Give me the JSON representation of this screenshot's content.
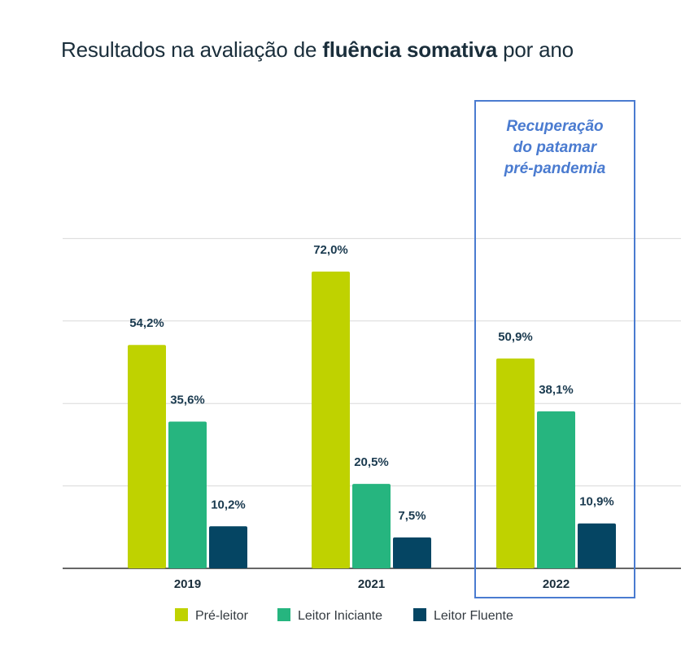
{
  "title": {
    "prefix": "Resultados na avaliação de ",
    "bold": "fluência somativa",
    "suffix": " por ano"
  },
  "chart_data": {
    "type": "bar",
    "categories": [
      "2019",
      "2021",
      "2022"
    ],
    "series": [
      {
        "name": "Pré-leitor",
        "color": "#bfd200",
        "values": [
          54.2,
          72.0,
          50.9
        ],
        "labels": [
          "54,2%",
          "72,0%",
          "50,9%"
        ]
      },
      {
        "name": "Leitor Iniciante",
        "color": "#26b57f",
        "values": [
          35.6,
          20.5,
          38.1
        ],
        "labels": [
          "35,6%",
          "20,5%",
          "38,1%"
        ]
      },
      {
        "name": "Leitor Fluente",
        "color": "#054563",
        "values": [
          10.2,
          7.5,
          10.9
        ],
        "labels": [
          "10,2%",
          "7,5%",
          "10,9%"
        ]
      }
    ],
    "ylim": [
      0,
      80
    ],
    "grid": true,
    "legend": "bottom",
    "annotation": {
      "category": "2022",
      "lines": [
        "Recuperação",
        "do patamar",
        "pré-pandemia"
      ],
      "color": "#4a7bd0"
    }
  }
}
